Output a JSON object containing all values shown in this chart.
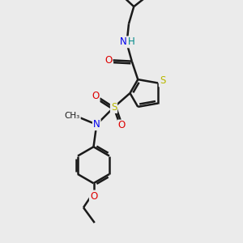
{
  "bg_color": "#ebebeb",
  "bond_color": "#1a1a1a",
  "bond_width": 1.8,
  "atom_colors": {
    "S_thiophene": "#b8b800",
    "S_sulfonyl": "#b8b800",
    "N_amide": "#0000ee",
    "N_sulfonamide": "#0000ee",
    "O_carbonyl": "#dd0000",
    "O_sulfonyl1": "#dd0000",
    "O_sulfonyl2": "#dd0000",
    "O_ethoxy": "#dd0000",
    "H_amide": "#008888",
    "C": "#1a1a1a"
  },
  "figsize": [
    3.0,
    3.0
  ],
  "dpi": 100,
  "xlim": [
    0,
    10
  ],
  "ylim": [
    0,
    12
  ]
}
